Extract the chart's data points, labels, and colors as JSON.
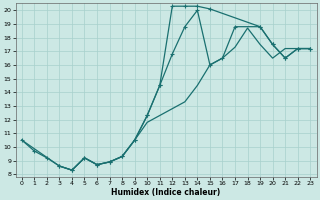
{
  "xlabel": "Humidex (Indice chaleur)",
  "bg_color": "#cce8e4",
  "grid_color": "#a8d0cc",
  "line_color": "#1a7070",
  "xlim": [
    -0.5,
    23.5
  ],
  "ylim": [
    7.8,
    20.5
  ],
  "xticks": [
    0,
    1,
    2,
    3,
    4,
    5,
    6,
    7,
    8,
    9,
    10,
    11,
    12,
    13,
    14,
    15,
    16,
    17,
    18,
    19,
    20,
    21,
    22,
    23
  ],
  "yticks": [
    8,
    9,
    10,
    11,
    12,
    13,
    14,
    15,
    16,
    17,
    18,
    19,
    20
  ],
  "curve1_x": [
    0,
    1,
    2,
    3,
    4,
    5,
    6,
    7,
    8,
    9,
    10,
    11,
    12,
    13,
    14,
    15,
    19,
    20,
    21,
    22,
    23
  ],
  "curve1_y": [
    10.5,
    9.7,
    9.2,
    8.6,
    8.3,
    9.2,
    8.7,
    8.9,
    9.3,
    10.5,
    12.3,
    14.5,
    20.3,
    20.3,
    20.3,
    20.1,
    18.8,
    17.5,
    16.5,
    17.2,
    17.2
  ],
  "curve1_markers": [
    true,
    true,
    true,
    true,
    true,
    true,
    true,
    true,
    true,
    true,
    true,
    true,
    true,
    true,
    true,
    true,
    false,
    false,
    true,
    true,
    true
  ],
  "curve2_x": [
    0,
    3,
    4,
    5,
    6,
    7,
    8,
    9,
    10,
    11,
    12,
    13,
    14,
    15,
    16,
    17,
    18,
    19,
    20,
    21,
    22,
    23
  ],
  "curve2_y": [
    10.5,
    8.6,
    8.3,
    9.2,
    8.7,
    8.9,
    9.3,
    10.5,
    11.8,
    12.3,
    12.8,
    13.3,
    14.5,
    16.0,
    16.5,
    17.3,
    18.7,
    17.5,
    16.5,
    17.2,
    17.2,
    17.2
  ],
  "curve2_markers": [
    false,
    false,
    false,
    false,
    false,
    false,
    false,
    false,
    false,
    false,
    false,
    false,
    false,
    false,
    false,
    false,
    false,
    false,
    false,
    false,
    false,
    false
  ],
  "curve3_x": [
    3,
    4,
    5,
    6,
    7,
    8,
    9,
    10,
    11,
    12,
    13,
    14,
    15,
    16,
    17,
    19,
    20,
    21,
    22,
    23
  ],
  "curve3_y": [
    8.6,
    8.3,
    9.2,
    8.7,
    8.9,
    9.3,
    10.5,
    12.3,
    14.5,
    16.8,
    18.8,
    20.0,
    16.0,
    16.5,
    18.8,
    18.8,
    17.5,
    16.5,
    17.2,
    17.2
  ],
  "curve3_markers": [
    true,
    true,
    true,
    true,
    true,
    true,
    true,
    true,
    true,
    true,
    true,
    true,
    true,
    true,
    true,
    true,
    true,
    true,
    true,
    true
  ]
}
